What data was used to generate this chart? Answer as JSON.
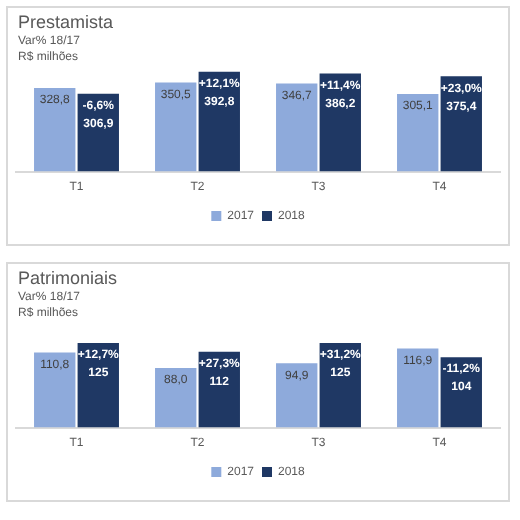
{
  "chart_data": [
    {
      "type": "bar",
      "title": "Prestamista",
      "subtitle": "Var%  18/17",
      "annotations": [
        "R$ milhões",
        {
          "text": "-6,6%",
          "x": "T1",
          "y": 306.9
        },
        {
          "text": "+12,1%",
          "x": "T2",
          "y": 392.8
        },
        {
          "text": "+11,4%",
          "x": "T3",
          "y": 386.2
        },
        {
          "text": "+23,0%",
          "x": "T4",
          "y": 375.4
        }
      ],
      "categories": [
        "T1",
        "T2",
        "T3",
        "T4"
      ],
      "series": [
        {
          "name": "2017",
          "color": "#8eaadb",
          "values": [
            328.8,
            350.5,
            346.7,
            305.1
          ],
          "value_labels": [
            "328,8",
            "350,5",
            "346,7",
            "305,1"
          ]
        },
        {
          "name": "2018",
          "color": "#1f3864",
          "values": [
            306.9,
            392.8,
            386.2,
            375.4
          ],
          "value_labels": [
            "306,9",
            "392,8",
            "386,2",
            "375,4"
          ]
        }
      ],
      "legend": "bottom",
      "grid": false,
      "tick_labels": "x"
    },
    {
      "type": "bar",
      "title": "Patrimoniais",
      "subtitle": "Var%  18/17",
      "annotations": [
        "R$ milhões",
        {
          "text": "+12,7%",
          "x": "T1",
          "y": 125
        },
        {
          "text": "+27,3%",
          "x": "T2",
          "y": 112
        },
        {
          "text": "+31,2%",
          "x": "T3",
          "y": 125
        },
        {
          "text": "-11,2%",
          "x": "T4",
          "y": 104
        }
      ],
      "categories": [
        "T1",
        "T2",
        "T3",
        "T4"
      ],
      "series": [
        {
          "name": "2017",
          "color": "#8eaadb",
          "values": [
            110.8,
            88.0,
            94.9,
            116.9
          ],
          "value_labels": [
            "110,8",
            "88,0",
            "94,9",
            "116,9"
          ]
        },
        {
          "name": "2018",
          "color": "#1f3864",
          "values": [
            125,
            112,
            125,
            104
          ],
          "value_labels": [
            "125",
            "112",
            "125",
            "104"
          ]
        }
      ],
      "legend": "bottom",
      "grid": false,
      "tick_labels": "x"
    }
  ]
}
